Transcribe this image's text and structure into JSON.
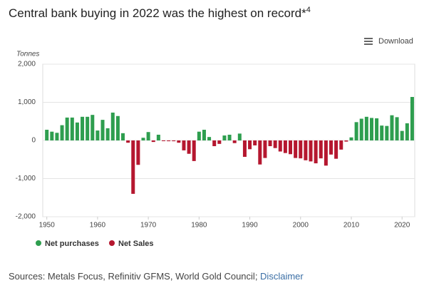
{
  "chart_data": {
    "type": "bar",
    "title": "Central bank buying in 2022 was the highest on record*",
    "title_superscript": "4",
    "download": "Download",
    "y_label": "Tonnes",
    "source": "Sources: Metals Focus, Refinitiv GFMS, World Gold Council; ",
    "source_link": "Disclaimer",
    "x": [
      1950,
      1951,
      1952,
      1953,
      1954,
      1955,
      1956,
      1957,
      1958,
      1959,
      1960,
      1961,
      1962,
      1963,
      1964,
      1965,
      1966,
      1967,
      1968,
      1969,
      1970,
      1971,
      1972,
      1973,
      1974,
      1975,
      1976,
      1977,
      1978,
      1979,
      1980,
      1981,
      1982,
      1983,
      1984,
      1985,
      1986,
      1987,
      1988,
      1989,
      1990,
      1991,
      1992,
      1993,
      1994,
      1995,
      1996,
      1997,
      1998,
      1999,
      2000,
      2001,
      2002,
      2003,
      2004,
      2005,
      2006,
      2007,
      2008,
      2009,
      2010,
      2011,
      2012,
      2013,
      2014,
      2015,
      2016,
      2017,
      2018,
      2019,
      2020,
      2021,
      2022
    ],
    "series": [
      {
        "name": "Net purchases",
        "color": "#2e9e4f",
        "values": [
          280,
          230,
          200,
          400,
          600,
          600,
          470,
          620,
          620,
          670,
          260,
          540,
          320,
          730,
          640,
          190,
          null,
          null,
          null,
          70,
          220,
          null,
          150,
          null,
          null,
          null,
          null,
          null,
          null,
          null,
          230,
          280,
          90,
          null,
          null,
          130,
          150,
          null,
          180,
          null,
          null,
          null,
          null,
          null,
          null,
          null,
          null,
          null,
          null,
          null,
          null,
          null,
          null,
          null,
          null,
          null,
          null,
          null,
          null,
          null,
          80,
          480,
          570,
          620,
          590,
          580,
          390,
          380,
          660,
          610,
          250,
          450,
          1140
        ]
      },
      {
        "name": "Net Sales",
        "color": "#b5172f",
        "values": [
          null,
          null,
          null,
          null,
          null,
          null,
          null,
          null,
          null,
          null,
          null,
          null,
          null,
          null,
          null,
          null,
          -60,
          -1400,
          -640,
          null,
          null,
          -40,
          null,
          -10,
          -20,
          -20,
          -60,
          -260,
          -350,
          -540,
          null,
          null,
          null,
          -150,
          -90,
          null,
          null,
          -70,
          null,
          -430,
          -230,
          -130,
          -630,
          -460,
          -150,
          -200,
          -290,
          -330,
          -360,
          -460,
          -470,
          -520,
          -550,
          -600,
          -470,
          -660,
          -370,
          -480,
          -240,
          -30,
          null,
          null,
          null,
          null,
          null,
          null,
          null,
          null,
          null,
          null,
          null,
          null,
          null
        ]
      }
    ],
    "xlim": [
      1949.2,
      2022.5
    ],
    "xticks": [
      1950,
      1960,
      1970,
      1980,
      1990,
      2000,
      2010,
      2020
    ],
    "ylim": [
      -2000,
      2000
    ],
    "yticks": [
      {
        "value": -2000,
        "label": "-2,000"
      },
      {
        "value": -1000,
        "label": "-1,000"
      },
      0,
      {
        "value": 1000,
        "label": "1,000"
      },
      {
        "value": 2000,
        "label": "2,000"
      }
    ],
    "grid": true
  }
}
